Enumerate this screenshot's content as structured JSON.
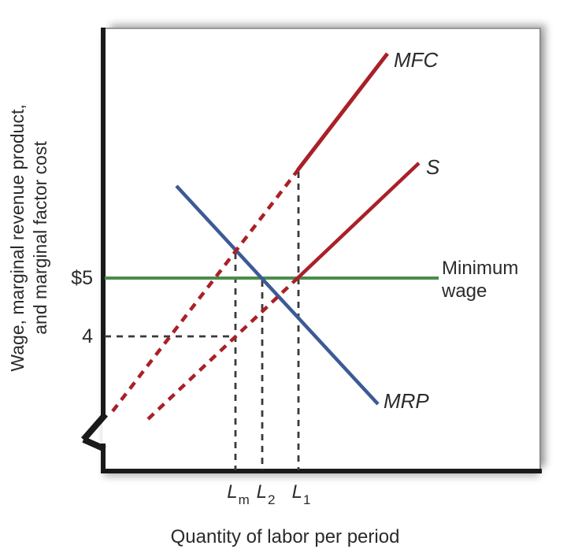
{
  "chart_data": {
    "type": "line",
    "title": "",
    "xlabel": "Quantity of labor per period",
    "ylabel_lines": [
      "Wage, marginal revenue product,",
      "and marginal factor cost"
    ],
    "grid": false,
    "axis_break": "y-axis break mark near origin",
    "y_ticks": [
      {
        "label": "$5",
        "value": 5
      },
      {
        "label": "4",
        "value": 4
      }
    ],
    "x_ticks": [
      {
        "base": "L",
        "sub": "m"
      },
      {
        "base": "L",
        "sub": "2"
      },
      {
        "base": "L",
        "sub": "1"
      }
    ],
    "curve_labels": {
      "mfc": "MFC",
      "s": "S",
      "mrp": "MRP",
      "min_wage_line1": "Minimum",
      "min_wage_line2": "wage"
    },
    "colors": {
      "red": "#aa2028",
      "blue": "#3c5a96",
      "green": "#4b8c4b",
      "guide": "#3a3a3a",
      "axis": "#1a1a1a"
    },
    "series": [
      {
        "name": "MFC",
        "color": "#aa2028",
        "style": "dashed below L1, solid above",
        "trend": "upward sloping, steepest"
      },
      {
        "name": "S",
        "color": "#aa2028",
        "style": "dashed below minimum wage, solid above",
        "trend": "upward sloping"
      },
      {
        "name": "MRP",
        "color": "#3c5a96",
        "style": "solid",
        "trend": "downward sloping"
      },
      {
        "name": "Minimum wage",
        "color": "#4b8c4b",
        "style": "solid horizontal",
        "value": 5
      }
    ],
    "key_points": [
      {
        "x": "Lm",
        "note": "MFC = MRP (monopsony quantity); supply wage = 4"
      },
      {
        "x": "L2",
        "note": "MRP crosses minimum wage of $5"
      },
      {
        "x": "L1",
        "note": "Supply crosses minimum wage of $5; MFC becomes solid"
      }
    ],
    "render_lines": [
      {
        "name": "guide-lm",
        "color": "#3a3a3a",
        "width": 2.8,
        "dash": "8 7",
        "points": [
          [
            299,
            321
          ],
          [
            299,
            597
          ]
        ]
      },
      {
        "name": "guide-l2",
        "color": "#3a3a3a",
        "width": 2.8,
        "dash": "8 7",
        "points": [
          [
            333,
            356
          ],
          [
            333,
            597
          ]
        ]
      },
      {
        "name": "guide-l1",
        "color": "#3a3a3a",
        "width": 2.8,
        "dash": "8 7",
        "points": [
          [
            379,
            218
          ],
          [
            379,
            597
          ]
        ]
      },
      {
        "name": "guide-wage4",
        "color": "#3a3a3a",
        "width": 2.8,
        "dash": "8 7",
        "points": [
          [
            133,
            427
          ],
          [
            297,
            427
          ]
        ]
      },
      {
        "name": "minimum-wage-line",
        "color": "#4b8c4b",
        "width": 4,
        "dash": null,
        "points": [
          [
            133,
            353
          ],
          [
            557,
            353
          ]
        ]
      },
      {
        "name": "mrp-line",
        "color": "#3c5a96",
        "width": 4.5,
        "dash": null,
        "points": [
          [
            224,
            236
          ],
          [
            480,
            513
          ]
        ]
      },
      {
        "name": "s-dashed",
        "color": "#aa2028",
        "width": 4.5,
        "dash": "10 8",
        "points": [
          [
            188,
            532
          ],
          [
            379,
            352
          ]
        ]
      },
      {
        "name": "s-solid",
        "color": "#aa2028",
        "width": 4.5,
        "dash": null,
        "points": [
          [
            378,
            353
          ],
          [
            532,
            207
          ]
        ]
      },
      {
        "name": "mfc-dashed",
        "color": "#aa2028",
        "width": 4.5,
        "dash": "10 8",
        "points": [
          [
            143,
            522
          ],
          [
            379,
            215
          ]
        ]
      },
      {
        "name": "mfc-solid",
        "color": "#aa2028",
        "width": 5,
        "dash": null,
        "points": [
          [
            378,
            216
          ],
          [
            492,
            68
          ]
        ]
      }
    ]
  }
}
